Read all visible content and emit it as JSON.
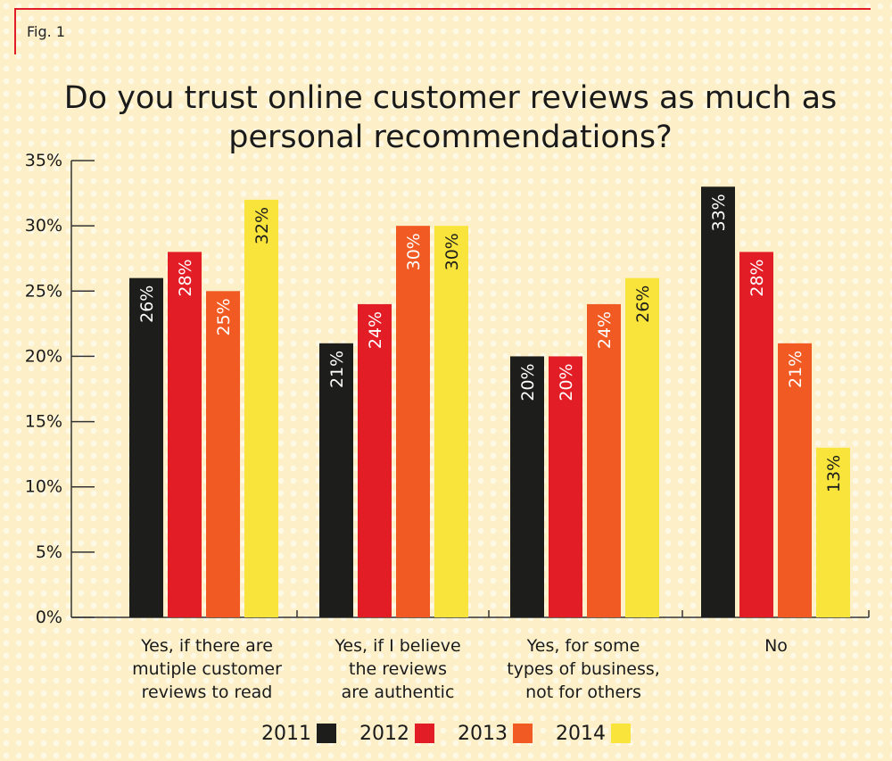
{
  "fig_label": "Fig. 1",
  "chart_data": {
    "type": "bar",
    "title": "Do you trust online customer reviews as much as personal recommendations?",
    "xlabel": "",
    "ylabel": "",
    "ylim": [
      0,
      35
    ],
    "yticks": [
      "0%",
      "5%",
      "10%",
      "15%",
      "20%",
      "25%",
      "30%",
      "35%"
    ],
    "ytick_values": [
      0,
      5,
      10,
      15,
      20,
      25,
      30,
      35
    ],
    "categories": [
      [
        "Yes, if there are",
        "mutiple customer",
        "reviews to read"
      ],
      [
        "Yes, if I believe",
        "the reviews",
        "are authentic"
      ],
      [
        "Yes, for some",
        "types of business,",
        "not for others"
      ],
      [
        "No"
      ]
    ],
    "series": [
      {
        "name": "2011",
        "color": "#1d1d1b",
        "values": [
          26,
          21,
          20,
          33
        ],
        "labels": [
          "26%",
          "21%",
          "20%",
          "33%"
        ]
      },
      {
        "name": "2012",
        "color": "#e21d26",
        "values": [
          28,
          24,
          20,
          28
        ],
        "labels": [
          "28%",
          "24%",
          "20%",
          "28%"
        ]
      },
      {
        "name": "2013",
        "color": "#f15a22",
        "values": [
          25,
          30,
          24,
          21
        ],
        "labels": [
          "25%",
          "30%",
          "24%",
          "21%"
        ]
      },
      {
        "name": "2014",
        "color": "#f9e43c",
        "values": [
          32,
          30,
          26,
          13
        ],
        "labels": [
          "32%",
          "30%",
          "26%",
          "13%"
        ]
      }
    ],
    "legend": "bottom",
    "grid": false
  }
}
